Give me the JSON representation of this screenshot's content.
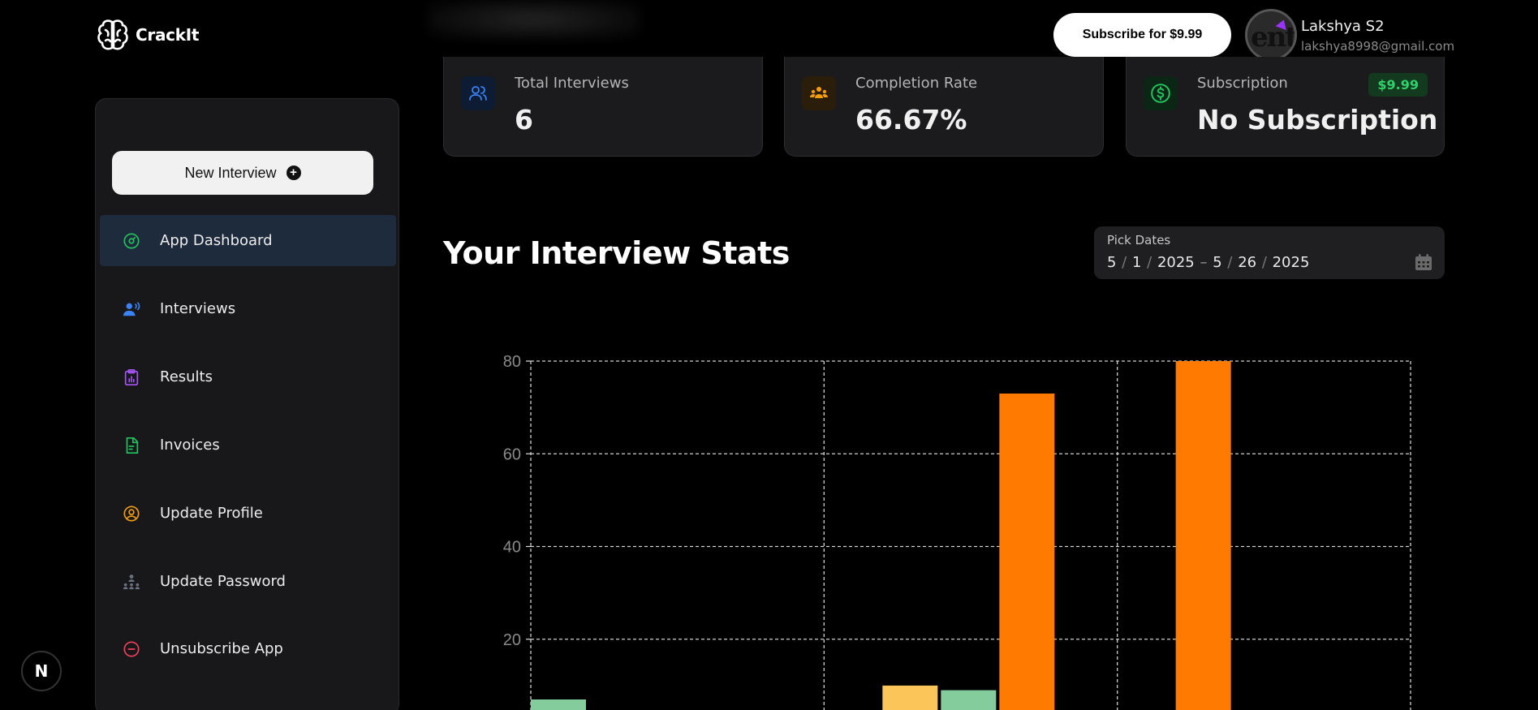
{
  "header": {
    "brand_name": "CrackIt",
    "subscribe_label": "Subscribe for $9.99",
    "user": {
      "name": "Lakshya S2",
      "email": "lakshya8998@gmail.com",
      "avatar_text": "ent"
    }
  },
  "stats": [
    {
      "label": "Total Interviews",
      "value": "6",
      "icon": "users-icon",
      "color": "#3b82f6"
    },
    {
      "label": "Completion Rate",
      "value": "66.67%",
      "icon": "group-icon",
      "color": "#f59e0b"
    },
    {
      "label": "Subscription",
      "value": "No Subscription",
      "icon": "dollar-circle-icon",
      "color": "#22c55e",
      "badge": "$9.99"
    }
  ],
  "sidebar": {
    "new_interview_label": "New Interview",
    "items": [
      {
        "label": "App Dashboard",
        "icon": "dashboard-icon",
        "color": "#22c55e",
        "active": true
      },
      {
        "label": "Interviews",
        "icon": "person-voice-icon",
        "color": "#3b82f6"
      },
      {
        "label": "Results",
        "icon": "clipboard-chart-icon",
        "color": "#a855f7"
      },
      {
        "label": "Invoices",
        "icon": "document-icon",
        "color": "#22c55e"
      },
      {
        "label": "Update Profile",
        "icon": "user-circle-icon",
        "color": "#f59e0b"
      },
      {
        "label": "Update Password",
        "icon": "network-icon",
        "color": "#6b7280"
      },
      {
        "label": "Unsubscribe App",
        "icon": "minus-circle-icon",
        "color": "#f43f5e"
      }
    ]
  },
  "main": {
    "section_title": "Your Interview Stats",
    "date_picker": {
      "label": "Pick Dates",
      "start": {
        "month": "5",
        "day": "1",
        "year": "2025"
      },
      "end": {
        "month": "5",
        "day": "26",
        "year": "2025"
      }
    }
  },
  "chart_data": {
    "type": "bar",
    "ylim": [
      0,
      80
    ],
    "y_ticks": [
      20,
      40,
      60,
      80
    ],
    "grid": true,
    "grid_style": "dashed",
    "groups": 3,
    "bars": [
      {
        "group": 0,
        "slot": 0,
        "value": 7,
        "color": "#84cc9c"
      },
      {
        "group": 1,
        "slot": 0,
        "value": 1,
        "color": "#8b7fd6"
      },
      {
        "group": 1,
        "slot": 1,
        "value": 10,
        "color": "#fcc55a"
      },
      {
        "group": 1,
        "slot": 2,
        "value": 9,
        "color": "#84cc9c"
      },
      {
        "group": 1,
        "slot": 3,
        "value": 73,
        "color": "#ff7a00"
      },
      {
        "group": 2,
        "slot": 0,
        "value": 1,
        "color": "#84cc9c"
      },
      {
        "group": 2,
        "slot": 1,
        "value": 80,
        "color": "#ff7a00"
      }
    ]
  },
  "misc": {
    "n_badge": "N"
  }
}
